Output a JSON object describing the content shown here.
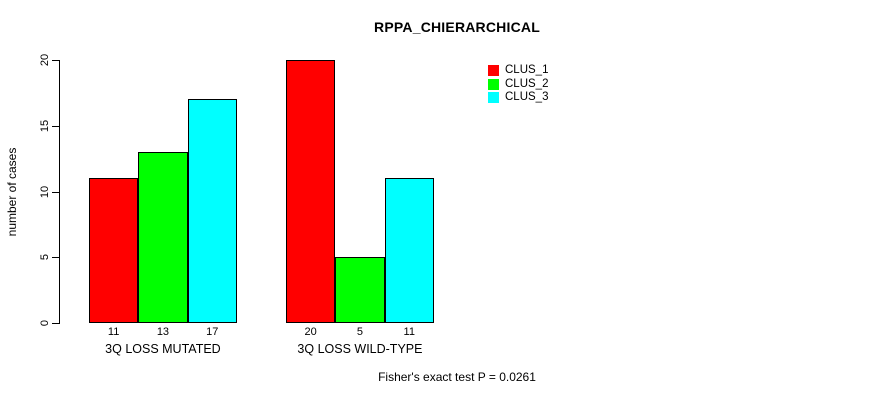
{
  "chart_data": {
    "type": "bar",
    "title": "RPPA_CHIERARCHICAL",
    "ylabel": "number of cases",
    "xlabel": "",
    "ylim": [
      0,
      20
    ],
    "yticks": [
      0,
      5,
      10,
      15,
      20
    ],
    "categories": [
      "3Q LOSS MUTATED",
      "3Q LOSS WILD-TYPE"
    ],
    "series": [
      {
        "name": "CLUS_1",
        "color": "#ff0000",
        "values": [
          11,
          20
        ]
      },
      {
        "name": "CLUS_2",
        "color": "#00ff00",
        "values": [
          13,
          5
        ]
      },
      {
        "name": "CLUS_3",
        "color": "#00ffff",
        "values": [
          17,
          11
        ]
      }
    ],
    "show_bar_values": true,
    "grid": false,
    "legend_position": "top-right",
    "annotation": "Fisher's exact test P = 0.0261",
    "axis_color": "#000000",
    "background": "#ffffff"
  }
}
